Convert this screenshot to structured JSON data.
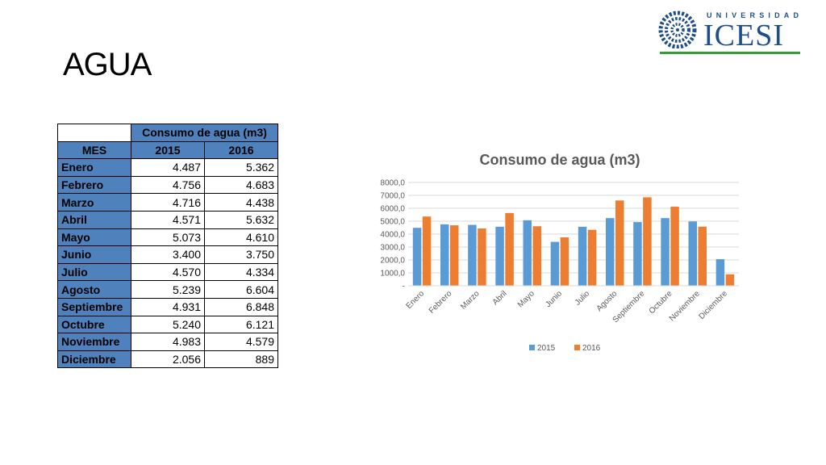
{
  "slide": {
    "title": "AGUA"
  },
  "logo": {
    "small_text": "UNIVERSIDAD",
    "big_text": "ICESI"
  },
  "table": {
    "group_header": "Consumo de agua (m3)",
    "col_header_label": "MES",
    "col_headers": [
      "2015",
      "2016"
    ],
    "rows": [
      {
        "label": "Enero",
        "v2015": "4.487",
        "v2016": "5.362"
      },
      {
        "label": "Febrero",
        "v2015": "4.756",
        "v2016": "4.683"
      },
      {
        "label": "Marzo",
        "v2015": "4.716",
        "v2016": "4.438"
      },
      {
        "label": "Abril",
        "v2015": "4.571",
        "v2016": "5.632"
      },
      {
        "label": "Mayo",
        "v2015": "5.073",
        "v2016": "4.610"
      },
      {
        "label": "Junio",
        "v2015": "3.400",
        "v2016": "3.750"
      },
      {
        "label": "Julio",
        "v2015": "4.570",
        "v2016": "4.334"
      },
      {
        "label": "Agosto",
        "v2015": "5.239",
        "v2016": "6.604"
      },
      {
        "label": "Septiembre",
        "v2015": "4.931",
        "v2016": "6.848"
      },
      {
        "label": "Octubre",
        "v2015": "5.240",
        "v2016": "6.121"
      },
      {
        "label": "Noviembre",
        "v2015": "4.983",
        "v2016": "4.579"
      },
      {
        "label": "Diciembre",
        "v2015": "2.056",
        "v2016": "889"
      }
    ]
  },
  "colors": {
    "series_2015": "#5b9bd5",
    "series_2016": "#ed7d31",
    "header_fill": "#4f81bd"
  },
  "chart_data": {
    "type": "bar",
    "title": "Consumo de agua (m3)",
    "categories": [
      "Enero",
      "Febrero",
      "Marzo",
      "Abril",
      "Mayo",
      "Junio",
      "Julio",
      "Agosto",
      "Septiembre",
      "Octubre",
      "Noviembre",
      "Diciembre"
    ],
    "series": [
      {
        "name": "2015",
        "values": [
          4487,
          4756,
          4716,
          4571,
          5073,
          3400,
          4570,
          5239,
          4931,
          5240,
          4983,
          2056
        ]
      },
      {
        "name": "2016",
        "values": [
          5362,
          4683,
          4438,
          5632,
          4610,
          3750,
          4334,
          6604,
          6848,
          6121,
          4579,
          889
        ]
      }
    ],
    "ylim": [
      0,
      8000
    ],
    "yticks": [
      "-",
      "1000,0",
      "2000,0",
      "3000,0",
      "4000,0",
      "5000,0",
      "6000,0",
      "7000,0",
      "8000,0"
    ],
    "grid": true,
    "legend_position": "bottom",
    "xlabel": "",
    "ylabel": ""
  }
}
